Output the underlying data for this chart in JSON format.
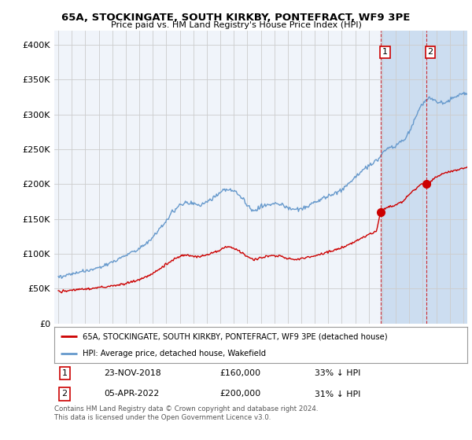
{
  "title": "65A, STOCKINGATE, SOUTH KIRKBY, PONTEFRACT, WF9 3PE",
  "subtitle": "Price paid vs. HM Land Registry's House Price Index (HPI)",
  "legend_label_red": "65A, STOCKINGATE, SOUTH KIRKBY, PONTEFRACT, WF9 3PE (detached house)",
  "legend_label_blue": "HPI: Average price, detached house, Wakefield",
  "annotation1_date": "23-NOV-2018",
  "annotation1_price": "£160,000",
  "annotation1_hpi": "33% ↓ HPI",
  "annotation2_date": "05-APR-2022",
  "annotation2_price": "£200,000",
  "annotation2_hpi": "31% ↓ HPI",
  "footnote": "Contains HM Land Registry data © Crown copyright and database right 2024.\nThis data is licensed under the Open Government Licence v3.0.",
  "ylim": [
    0,
    420000
  ],
  "yticks": [
    0,
    50000,
    100000,
    150000,
    200000,
    250000,
    300000,
    350000,
    400000
  ],
  "ytick_labels": [
    "£0",
    "£50K",
    "£100K",
    "£150K",
    "£200K",
    "£250K",
    "£300K",
    "£350K",
    "£400K"
  ],
  "background_color": "#ffffff",
  "plot_bg_color": "#f0f4fa",
  "grid_color": "#cccccc",
  "red_color": "#cc0000",
  "blue_color": "#6699cc",
  "shade_color": "#ccddf0",
  "sale1_year": 2018.9,
  "sale1_value": 160000,
  "sale2_year": 2022.25,
  "sale2_value": 200000,
  "shade_start": 2018.9,
  "shade_end": 2025.3,
  "xmin": 1995.0,
  "xmax": 2025.3
}
